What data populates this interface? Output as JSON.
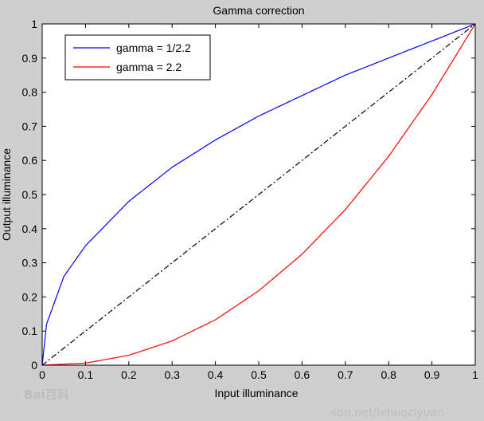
{
  "chart_data": {
    "type": "line",
    "title": "Gamma correction",
    "xlabel": "Input illuminance",
    "ylabel": "Output illuminance",
    "xlim": [
      0,
      1
    ],
    "ylim": [
      0,
      1
    ],
    "x_ticks": [
      "0",
      "0.1",
      "0.2",
      "0.3",
      "0.4",
      "0.5",
      "0.6",
      "0.7",
      "0.8",
      "0.9",
      "1"
    ],
    "y_ticks": [
      "0",
      "0.1",
      "0.2",
      "0.3",
      "0.4",
      "0.5",
      "0.6",
      "0.7",
      "0.8",
      "0.9",
      "1"
    ],
    "grid": false,
    "legend_position": "top-left",
    "series": [
      {
        "name": "gamma = 1/2.2",
        "color": "#0000ff",
        "style": "solid",
        "x": [
          0,
          0.01,
          0.05,
          0.1,
          0.2,
          0.3,
          0.4,
          0.5,
          0.6,
          0.7,
          0.8,
          0.9,
          1
        ],
        "y": [
          0,
          0.12,
          0.26,
          0.35,
          0.48,
          0.58,
          0.66,
          0.73,
          0.79,
          0.85,
          0.9,
          0.95,
          1
        ]
      },
      {
        "name": "gamma = 2.2",
        "color": "#ff0000",
        "style": "solid",
        "x": [
          0,
          0.1,
          0.2,
          0.3,
          0.4,
          0.5,
          0.6,
          0.7,
          0.8,
          0.9,
          1
        ],
        "y": [
          0,
          0.006,
          0.029,
          0.071,
          0.133,
          0.218,
          0.325,
          0.456,
          0.612,
          0.793,
          1
        ]
      },
      {
        "color": "#000000",
        "style": "dash-dot",
        "x": [
          0,
          1
        ],
        "y": [
          0,
          1
        ]
      }
    ]
  },
  "watermarks": {
    "logo": "Bai百科",
    "url": "sdn.net/lehuoziyuan"
  }
}
